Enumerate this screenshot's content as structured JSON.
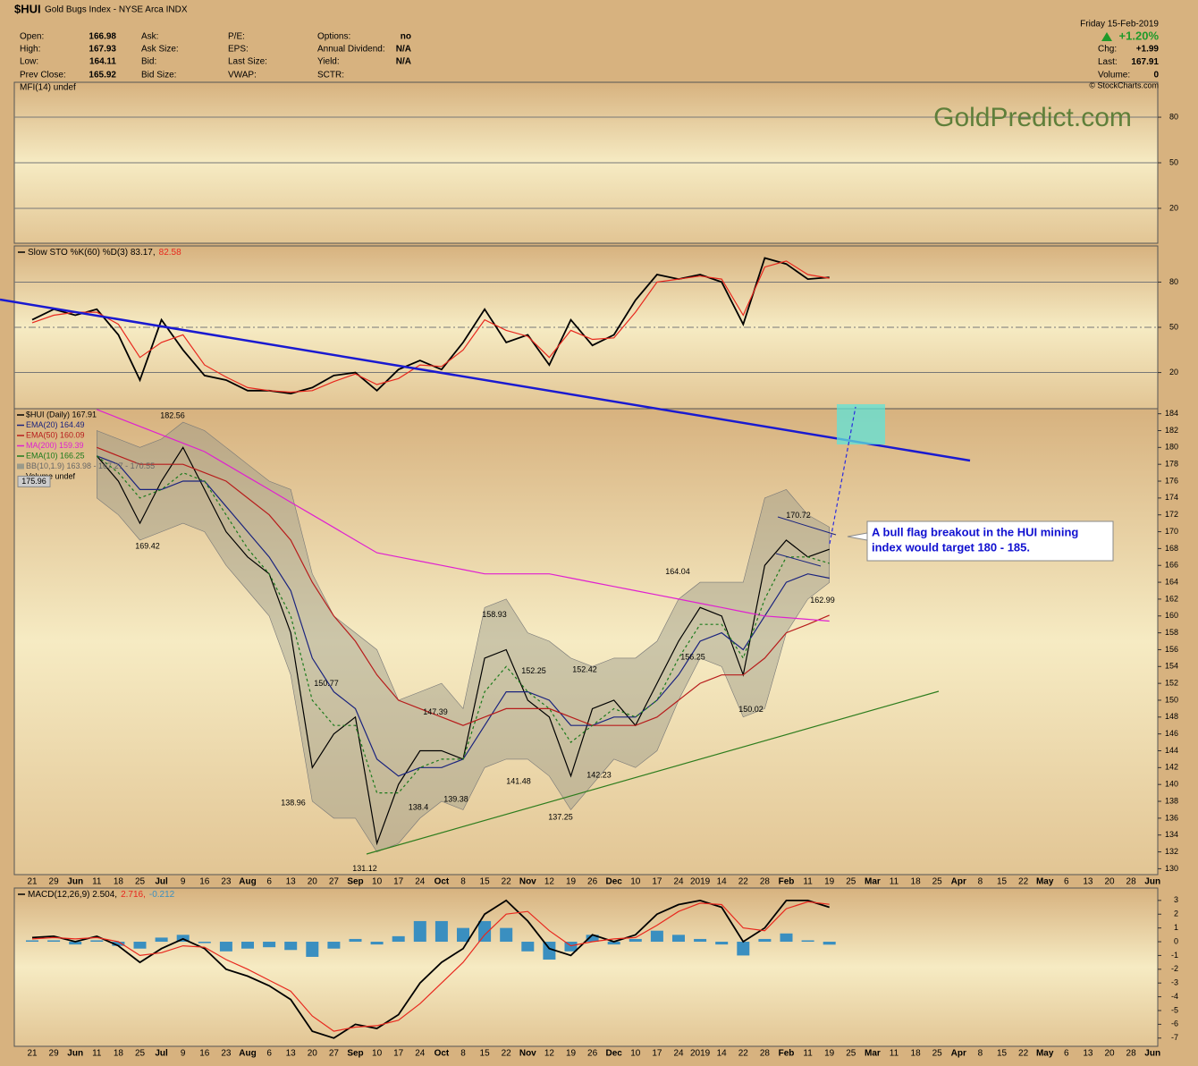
{
  "header": {
    "symbol": "$HUI",
    "name": "Gold Bugs Index - NYSE Arca INDX",
    "quote": [
      [
        {
          "label": "Open:",
          "value": "166.98"
        },
        {
          "label": "High:",
          "value": "167.93"
        },
        {
          "label": "Low:",
          "value": "164.11"
        },
        {
          "label": "Prev Close:",
          "value": "165.92"
        }
      ],
      [
        {
          "label": "Ask:"
        },
        {
          "label": "Ask Size:"
        },
        {
          "label": "Bid:"
        },
        {
          "label": "Bid Size:"
        }
      ],
      [
        {
          "label": "P/E:"
        },
        {
          "label": "EPS:"
        },
        {
          "label": "Last Size:"
        },
        {
          "label": "VWAP:"
        }
      ],
      [
        {
          "label": "Options:",
          "value": "no"
        },
        {
          "label": "Annual Dividend:",
          "value": "N/A"
        },
        {
          "label": "Yield:",
          "value": "N/A"
        },
        {
          "label": "SCTR:"
        }
      ]
    ],
    "date": "Friday 15-Feb-2019",
    "change": "+1.20%",
    "right": [
      {
        "label": "Chg:",
        "value": "+1.99"
      },
      {
        "label": "Last:",
        "value": "167.91"
      },
      {
        "label": "Volume:",
        "value": "0"
      }
    ],
    "copyright": "© StockCharts.com",
    "watermark": "GoldPredict.com"
  },
  "callout": [
    "A bull flag breakout in the HUI mining",
    "index would target 180 - 185."
  ],
  "chart_data": [
    {
      "type": "line",
      "title": "MFI(14) undef",
      "ylim": [
        -3,
        103
      ],
      "yticks": [
        80,
        50,
        20
      ],
      "grid": true,
      "series": []
    },
    {
      "type": "line",
      "ylim": [
        -4,
        104
      ],
      "yticks": [
        80,
        50,
        20
      ],
      "grid": true,
      "series": [
        {
          "name": "Slow STO %K(60) %D(3) 83.17,",
          "color": "#000000",
          "values": [
            55,
            62,
            58,
            62,
            45,
            15,
            55,
            35,
            18,
            15,
            8,
            8,
            6,
            10,
            18,
            20,
            8,
            22,
            28,
            22,
            40,
            62,
            40,
            45,
            25,
            55,
            38,
            45,
            68,
            85,
            82,
            85,
            80,
            52,
            96,
            92,
            82,
            83.17,
            null,
            null,
            null,
            null,
            null,
            null,
            null,
            null,
            null,
            null,
            null,
            null,
            null,
            null,
            null
          ]
        },
        {
          "name": "82.58",
          "color": "#e8281e",
          "values": [
            53,
            58,
            60,
            60,
            52,
            30,
            40,
            45,
            25,
            17,
            10,
            8,
            7,
            8,
            14,
            19,
            12,
            16,
            25,
            24,
            35,
            55,
            48,
            44,
            30,
            48,
            42,
            43,
            60,
            80,
            82,
            84,
            82,
            58,
            90,
            94,
            85,
            82.58,
            null,
            null,
            null,
            null,
            null,
            null,
            null,
            null,
            null,
            null,
            null,
            null,
            null,
            null,
            null
          ]
        }
      ]
    },
    {
      "type": "line",
      "ylim": [
        129.3,
        184.6
      ],
      "grid": false,
      "yticks": [
        130,
        132,
        134,
        136,
        138,
        140,
        142,
        144,
        146,
        148,
        150,
        152,
        154,
        156,
        158,
        160,
        162,
        164,
        166,
        168,
        170,
        172,
        174,
        176,
        178,
        180,
        182,
        184
      ],
      "categories": [
        "21",
        "29",
        "Jun",
        "11",
        "18",
        "25",
        "Jul",
        "9",
        "16",
        "23",
        "Aug",
        "6",
        "13",
        "20",
        "27",
        "Sep",
        "10",
        "17",
        "24",
        "Oct",
        "8",
        "15",
        "22",
        "Nov",
        "12",
        "19",
        "26",
        "Dec",
        "10",
        "17",
        "24",
        "2019",
        "14",
        "22",
        "28",
        "Feb",
        "11",
        "19",
        "25",
        "Mar",
        "11",
        "18",
        "25",
        "Apr",
        "8",
        "15",
        "22",
        "May",
        "6",
        "13",
        "20",
        "28",
        "Jun"
      ],
      "series": [
        {
          "name": "$HUI (Daily) 167.91",
          "color": "#000000",
          "values": [
            null,
            null,
            null,
            179,
            176,
            171,
            176,
            180,
            175,
            170,
            167,
            165,
            158,
            142,
            146,
            148,
            133,
            140,
            144,
            144,
            143,
            155,
            156,
            150,
            148,
            141,
            149,
            150,
            147,
            152,
            157,
            161,
            160,
            153,
            166,
            169,
            167,
            167.91,
            null,
            null,
            null,
            null,
            null,
            null,
            null,
            null,
            null,
            null,
            null,
            null,
            null,
            null,
            null
          ]
        },
        {
          "name": "EMA(20) 164.49",
          "color": "#1a237e",
          "values": [
            null,
            null,
            null,
            179,
            178,
            175,
            175,
            176,
            176,
            173,
            170,
            167,
            163,
            155,
            151,
            149,
            143,
            141,
            142,
            142,
            143,
            147,
            151,
            151,
            150,
            147,
            147,
            148,
            148,
            150,
            153,
            157,
            158,
            156,
            160,
            164,
            165,
            164.49,
            null,
            null,
            null,
            null,
            null,
            null,
            null,
            null,
            null,
            null,
            null,
            null,
            null,
            null,
            null
          ]
        },
        {
          "name": "EMA(50) 160.09",
          "color": "#b71c1c",
          "values": [
            null,
            null,
            null,
            180,
            179,
            178,
            178,
            178,
            177,
            176,
            174,
            172,
            169,
            164,
            160,
            157,
            153,
            150,
            149,
            148,
            147,
            148,
            149,
            149,
            149,
            148,
            147,
            147,
            147,
            148,
            150,
            152,
            153,
            153,
            155,
            158,
            159,
            160.09,
            null,
            null,
            null,
            null,
            null,
            null,
            null,
            null,
            null,
            null,
            null,
            null,
            null,
            null,
            null
          ]
        },
        {
          "name": "MA(200) 159.39",
          "color": "#e020d0",
          "values": [
            null,
            null,
            null,
            184.5,
            183.5,
            182.5,
            181.5,
            180.5,
            179.5,
            178,
            176.5,
            175,
            173.5,
            172,
            170.5,
            169,
            167.5,
            167,
            166.5,
            166,
            165.5,
            165,
            165,
            165,
            165,
            164.5,
            164,
            163.5,
            163,
            162.5,
            162,
            161.5,
            161,
            160.5,
            160,
            159.8,
            159.6,
            159.39,
            null,
            null,
            null,
            null,
            null,
            null,
            null,
            null,
            null,
            null,
            null,
            null,
            null,
            null,
            null
          ]
        },
        {
          "name": "EMA(10) 166.25",
          "color": "#1b7a1b",
          "dashed": true,
          "values": [
            null,
            null,
            null,
            179,
            177,
            174,
            175,
            177,
            176,
            172,
            168,
            165,
            160,
            150,
            147,
            147,
            139,
            139,
            142,
            143,
            143,
            151,
            154,
            151,
            149,
            145,
            147,
            149,
            148,
            150,
            155,
            159,
            159,
            155,
            162,
            167,
            167,
            166.25,
            null,
            null,
            null,
            null,
            null,
            null,
            null,
            null,
            null,
            null,
            null,
            null,
            null,
            null,
            null
          ]
        }
      ],
      "bands": {
        "name": "BB(10,1.9) 163.98 - 167.27 - 170.55",
        "color": "#9a9a8a",
        "upper": [
          null,
          null,
          null,
          182,
          181,
          180,
          181,
          183,
          182,
          180,
          178,
          176,
          175,
          165,
          160,
          158,
          156,
          150,
          151,
          152,
          149,
          161,
          162,
          158,
          157,
          155,
          154,
          155,
          155,
          157,
          162,
          164,
          164,
          164,
          174,
          175,
          172,
          170.55,
          null,
          null,
          null,
          null,
          null,
          null,
          null,
          null,
          null,
          null,
          null,
          null,
          null,
          null,
          null
        ],
        "lower": [
          null,
          null,
          null,
          174,
          172,
          169,
          170,
          171,
          170,
          166,
          163,
          160,
          153,
          138,
          136,
          136,
          132,
          133,
          136,
          138,
          137,
          142,
          143,
          143,
          141,
          137,
          140,
          143,
          142,
          144,
          150,
          155,
          154,
          148,
          149,
          158,
          162,
          163.98,
          null,
          null,
          null,
          null,
          null,
          null,
          null,
          null,
          null,
          null,
          null,
          null,
          null,
          null,
          null
        ]
      },
      "volume_label": "Volume undef",
      "price_labels": [
        175.96,
        182.56,
        169.42,
        150.77,
        138.96,
        131.12,
        147.39,
        138.4,
        139.38,
        158.93,
        141.48,
        152.25,
        137.25,
        152.42,
        142.23,
        164.04,
        156.25,
        150.02,
        170.72,
        162.99
      ]
    },
    {
      "type": "line",
      "ylim": [
        -7.6,
        3.9
      ],
      "yticks": [
        3,
        2,
        1,
        0,
        -1,
        -2,
        -3,
        -4,
        -5,
        -6,
        -7
      ],
      "grid": false,
      "categories": [
        "21",
        "29",
        "Jun",
        "11",
        "18",
        "25",
        "Jul",
        "9",
        "16",
        "23",
        "Aug",
        "6",
        "13",
        "20",
        "27",
        "Sep",
        "10",
        "17",
        "24",
        "Oct",
        "8",
        "15",
        "22",
        "Nov",
        "12",
        "19",
        "26",
        "Dec",
        "10",
        "17",
        "24",
        "2019",
        "14",
        "22",
        "28",
        "Feb",
        "11",
        "19",
        "25",
        "Mar",
        "11",
        "18",
        "25",
        "Apr",
        "8",
        "15",
        "22",
        "May",
        "6",
        "13",
        "20",
        "28",
        "Jun"
      ],
      "series": [
        {
          "name": "MACD(12,26,9) 2.504,",
          "color": "#000000",
          "values": [
            0.3,
            0.4,
            0,
            0.4,
            -0.3,
            -1.5,
            -0.5,
            0.2,
            -0.5,
            -2,
            -2.5,
            -3.2,
            -4.2,
            -6.5,
            -7,
            -6,
            -6.3,
            -5.3,
            -3,
            -1.5,
            -0.5,
            2,
            3,
            1.5,
            -0.5,
            -1,
            0.5,
            0,
            0.5,
            2,
            2.7,
            3,
            2.5,
            0,
            1,
            3,
            3,
            2.504,
            null,
            null,
            null,
            null,
            null,
            null,
            null,
            null,
            null,
            null,
            null,
            null,
            null,
            null,
            null
          ]
        },
        {
          "name": "2.716,",
          "color": "#e8281e",
          "values": [
            0.2,
            0.3,
            0.2,
            0.3,
            0,
            -1,
            -0.8,
            -0.3,
            -0.4,
            -1.3,
            -2,
            -2.8,
            -3.6,
            -5.4,
            -6.5,
            -6.2,
            -6.1,
            -5.7,
            -4.5,
            -3,
            -1.5,
            0.5,
            2,
            2.2,
            0.8,
            -0.3,
            0,
            0.2,
            0.3,
            1.2,
            2.2,
            2.8,
            2.7,
            1,
            0.8,
            2.4,
            2.9,
            2.716,
            null,
            null,
            null,
            null,
            null,
            null,
            null,
            null,
            null,
            null,
            null,
            null,
            null,
            null,
            null
          ]
        }
      ],
      "histogram": {
        "name": "-0.212",
        "color": "#3a8fc0",
        "values": [
          0.1,
          0.1,
          -0.2,
          0.1,
          -0.3,
          -0.5,
          0.3,
          0.5,
          -0.1,
          -0.7,
          -0.5,
          -0.4,
          -0.6,
          -1.1,
          -0.5,
          0.2,
          -0.2,
          0.4,
          1.5,
          1.5,
          1,
          1.5,
          1,
          -0.7,
          -1.3,
          -0.7,
          0.5,
          -0.2,
          0.2,
          0.8,
          0.5,
          0.2,
          -0.2,
          -1,
          0.2,
          0.6,
          0.1,
          -0.212,
          null,
          null,
          null,
          null,
          null,
          null,
          null,
          null,
          null,
          null,
          null,
          null,
          null,
          null,
          null
        ]
      }
    }
  ]
}
